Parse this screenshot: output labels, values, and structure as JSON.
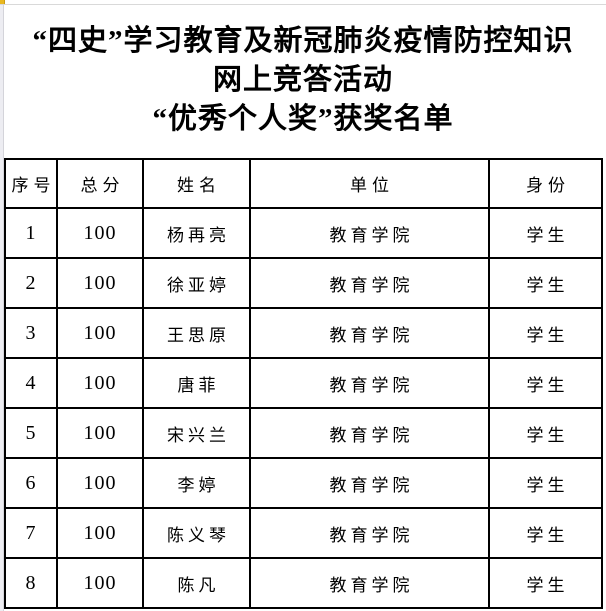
{
  "title": {
    "line1": "“四史”学习教育及新冠肺炎疫情防控知识",
    "line2": "网上竞答活动",
    "line3": "“优秀个人奖”获奖名单"
  },
  "table": {
    "headers": [
      "序号",
      "总分",
      "姓名",
      "单位",
      "身份"
    ],
    "rows": [
      [
        "1",
        "100",
        "杨再亮",
        "教育学院",
        "学生"
      ],
      [
        "2",
        "100",
        "徐亚婷",
        "教育学院",
        "学生"
      ],
      [
        "3",
        "100",
        "王思原",
        "教育学院",
        "学生"
      ],
      [
        "4",
        "100",
        "唐菲",
        "教育学院",
        "学生"
      ],
      [
        "5",
        "100",
        "宋兴兰",
        "教育学院",
        "学生"
      ],
      [
        "6",
        "100",
        "李婷",
        "教育学院",
        "学生"
      ],
      [
        "7",
        "100",
        "陈义琴",
        "教育学院",
        "学生"
      ],
      [
        "8",
        "100",
        "陈凡",
        "教育学院",
        "学生"
      ]
    ]
  },
  "colors": {
    "text": "#000000",
    "table_border": "#000000",
    "corner_accent": "#e9b821",
    "gridline_gray": "#d9d9d9",
    "margin_strip": "#ededf2"
  }
}
